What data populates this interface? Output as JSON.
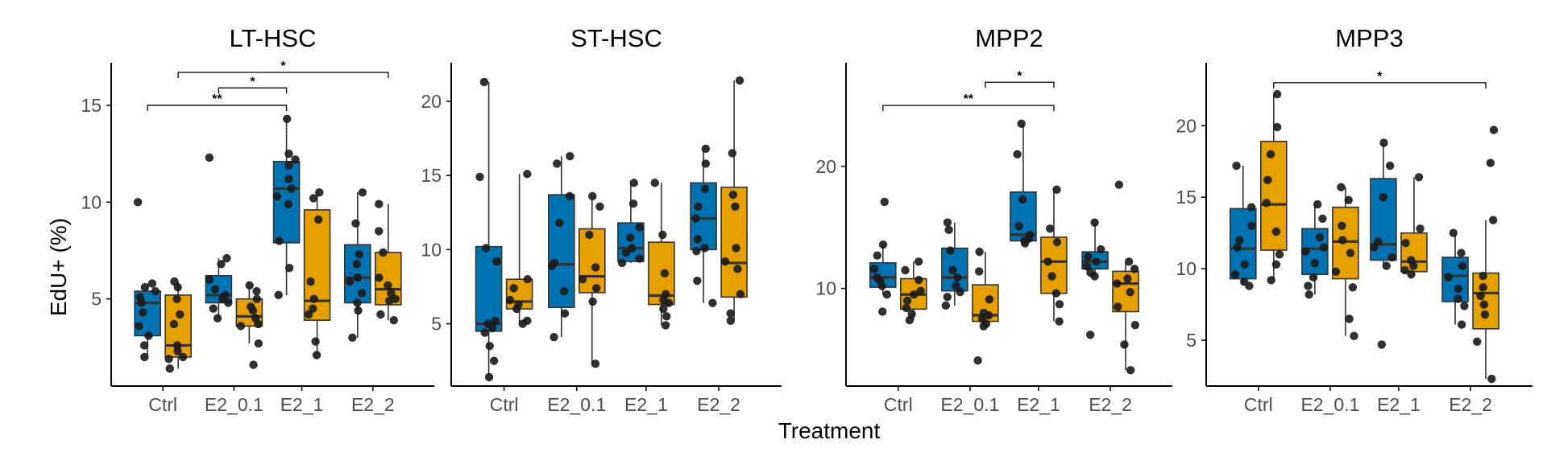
{
  "figure": {
    "ylabel": "EdU+ (%)",
    "xlabel": "Treatment"
  },
  "colors": {
    "series_a": "#0072B2",
    "series_b": "#E69F00",
    "box_edge": "#333333",
    "point": "#1a1a1a",
    "axis": "#000000"
  },
  "chart_data": [
    {
      "type": "box",
      "title": "LT-HSC",
      "categories": [
        "Ctrl",
        "E2_0.1",
        "E2_1",
        "E2_2"
      ],
      "ylim": [
        0.5,
        17.2
      ],
      "yticks": [
        5,
        10,
        15
      ],
      "series": [
        {
          "name": "group A",
          "boxes": [
            {
              "q1": 3.1,
              "median": 4.8,
              "q3": 5.4,
              "whislo": 2.0,
              "whishi": 5.8,
              "outliers": [
                10.0
              ],
              "points": [
                10.0,
                5.8,
                5.6,
                5.4,
                5.1,
                4.8,
                4.3,
                3.6,
                3.1,
                2.6,
                2.0
              ]
            },
            {
              "q1": 4.8,
              "median": 5.2,
              "q3": 6.2,
              "whislo": 4.0,
              "whishi": 7.1,
              "outliers": [
                12.3
              ],
              "points": [
                12.3,
                7.1,
                6.8,
                6.0,
                5.5,
                5.2,
                5.0,
                4.8,
                4.5,
                4.0
              ]
            },
            {
              "q1": 7.9,
              "median": 10.7,
              "q3": 12.1,
              "whislo": 5.2,
              "whishi": 14.3,
              "points": [
                14.3,
                12.5,
                12.2,
                11.9,
                11.2,
                10.7,
                10.3,
                9.9,
                8.0,
                6.6,
                5.2
              ]
            },
            {
              "q1": 4.8,
              "median": 6.1,
              "q3": 7.8,
              "whislo": 3.0,
              "whishi": 10.5,
              "points": [
                10.5,
                8.9,
                7.3,
                6.8,
                6.1,
                5.9,
                5.3,
                4.8,
                4.4,
                3.0
              ]
            }
          ]
        },
        {
          "name": "group B",
          "boxes": [
            {
              "q1": 2.0,
              "median": 2.6,
              "q3": 5.2,
              "whislo": 1.4,
              "whishi": 5.9,
              "points": [
                5.9,
                5.6,
                5.0,
                4.2,
                3.7,
                2.6,
                2.3,
                2.0,
                1.9,
                1.4
              ]
            },
            {
              "q1": 3.6,
              "median": 4.1,
              "q3": 5.0,
              "whislo": 2.7,
              "whishi": 5.7,
              "outliers": [
                1.6
              ],
              "points": [
                5.7,
                5.4,
                5.0,
                4.6,
                4.4,
                4.0,
                3.7,
                3.6,
                2.7,
                1.6
              ]
            },
            {
              "q1": 3.9,
              "median": 4.9,
              "q3": 9.6,
              "whislo": 2.1,
              "whishi": 10.5,
              "points": [
                10.5,
                10.2,
                9.1,
                5.9,
                5.0,
                4.5,
                4.2,
                2.8,
                2.1
              ]
            },
            {
              "q1": 4.7,
              "median": 5.5,
              "q3": 7.4,
              "whislo": 3.9,
              "whishi": 9.9,
              "points": [
                9.9,
                8.5,
                7.4,
                6.1,
                5.7,
                5.3,
                5.0,
                4.9,
                4.2,
                3.9
              ]
            }
          ]
        }
      ],
      "annotations": [
        {
          "label": "**",
          "from": [
            0,
            0
          ],
          "to": [
            2,
            0
          ],
          "y": 15.0
        },
        {
          "label": "*",
          "from": [
            1,
            0
          ],
          "to": [
            2,
            0
          ],
          "y": 15.9
        },
        {
          "label": "*",
          "from": [
            0,
            1
          ],
          "to": [
            3,
            1
          ],
          "y": 16.7
        }
      ]
    },
    {
      "type": "box",
      "title": "ST-HSC",
      "categories": [
        "Ctrl",
        "E2_0.1",
        "E2_1",
        "E2_2"
      ],
      "ylim": [
        0.8,
        22.6
      ],
      "yticks": [
        5,
        10,
        15,
        20
      ],
      "series": [
        {
          "name": "group A",
          "boxes": [
            {
              "q1": 4.5,
              "median": 5.0,
              "q3": 10.2,
              "whislo": 1.4,
              "whishi": 21.3,
              "points": [
                21.3,
                14.9,
                10.1,
                9.2,
                5.2,
                5.0,
                4.7,
                4.4,
                3.5,
                2.5,
                1.4
              ]
            },
            {
              "q1": 6.1,
              "median": 9.0,
              "q3": 13.7,
              "whislo": 4.1,
              "whishi": 16.3,
              "points": [
                16.3,
                15.8,
                13.6,
                11.8,
                9.1,
                8.9,
                7.2,
                5.7,
                4.1
              ]
            },
            {
              "q1": 9.2,
              "median": 10.1,
              "q3": 11.8,
              "whislo": 9.1,
              "whishi": 14.5,
              "points": [
                14.5,
                13.1,
                11.5,
                10.8,
                10.1,
                9.8,
                9.4,
                9.1
              ]
            },
            {
              "q1": 10.0,
              "median": 12.1,
              "q3": 14.5,
              "whislo": 6.4,
              "whishi": 16.8,
              "points": [
                16.8,
                15.8,
                14.1,
                12.9,
                12.1,
                10.7,
                10.1,
                9.9,
                7.9,
                6.4
              ]
            }
          ]
        },
        {
          "name": "group B",
          "boxes": [
            {
              "q1": 6.0,
              "median": 6.5,
              "q3": 8.0,
              "whislo": 5.0,
              "whishi": 15.1,
              "points": [
                15.1,
                8.0,
                7.4,
                6.6,
                6.3,
                6.0,
                5.2,
                5.0
              ]
            },
            {
              "q1": 7.1,
              "median": 8.2,
              "q3": 11.4,
              "whislo": 2.3,
              "whishi": 13.6,
              "points": [
                13.6,
                12.9,
                11.0,
                8.8,
                8.0,
                7.4,
                6.5,
                2.3
              ]
            },
            {
              "q1": 6.3,
              "median": 6.9,
              "q3": 10.5,
              "whislo": 4.9,
              "whishi": 14.5,
              "points": [
                14.5,
                11.0,
                8.4,
                7.0,
                6.6,
                6.4,
                6.0,
                5.5,
                4.9
              ]
            },
            {
              "q1": 6.8,
              "median": 9.1,
              "q3": 14.2,
              "whislo": 5.2,
              "whishi": 21.4,
              "points": [
                21.4,
                16.5,
                13.7,
                12.9,
                10.1,
                9.2,
                8.7,
                7.0,
                5.7,
                5.2
              ]
            }
          ]
        }
      ],
      "annotations": []
    },
    {
      "type": "box",
      "title": "MPP2",
      "categories": [
        "Ctrl",
        "E2_0.1",
        "E2_1",
        "E2_2"
      ],
      "ylim": [
        2.0,
        28.5
      ],
      "yticks": [
        10,
        20
      ],
      "series": [
        {
          "name": "group A",
          "boxes": [
            {
              "q1": 10.1,
              "median": 10.9,
              "q3": 12.1,
              "whislo": 9.5,
              "whishi": 13.6,
              "outliers": [
                17.1,
                8.1
              ],
              "points": [
                17.1,
                13.6,
                12.7,
                11.6,
                10.9,
                10.6,
                10.2,
                9.5,
                8.1
              ]
            },
            {
              "q1": 9.8,
              "median": 10.9,
              "q3": 13.3,
              "whislo": 8.6,
              "whishi": 15.4,
              "points": [
                15.4,
                14.8,
                13.1,
                11.5,
                10.9,
                10.2,
                9.7,
                9.3,
                8.6
              ]
            },
            {
              "q1": 13.9,
              "median": 14.4,
              "q3": 17.9,
              "whislo": 13.7,
              "whishi": 23.5,
              "points": [
                23.5,
                21.0,
                17.3,
                15.1,
                14.4,
                14.1,
                13.9,
                13.7
              ]
            },
            {
              "q1": 11.6,
              "median": 12.2,
              "q3": 13.0,
              "whislo": 11.0,
              "whishi": 15.4,
              "outliers": [
                6.2
              ],
              "points": [
                15.4,
                13.2,
                12.6,
                12.2,
                11.8,
                11.3,
                11.0,
                6.2
              ]
            }
          ]
        },
        {
          "name": "group B",
          "boxes": [
            {
              "q1": 8.3,
              "median": 9.5,
              "q3": 10.8,
              "whislo": 7.4,
              "whishi": 12.2,
              "points": [
                12.2,
                11.5,
                10.7,
                9.8,
                9.5,
                9.0,
                8.4,
                7.9,
                7.4
              ]
            },
            {
              "q1": 7.3,
              "median": 7.8,
              "q3": 10.3,
              "whislo": 6.9,
              "whishi": 13.0,
              "outliers": [
                4.1
              ],
              "points": [
                13.0,
                11.4,
                9.1,
                8.0,
                7.8,
                7.5,
                7.1,
                6.9,
                4.1
              ]
            },
            {
              "q1": 9.6,
              "median": 12.2,
              "q3": 14.2,
              "whislo": 7.3,
              "whishi": 18.1,
              "points": [
                18.1,
                14.9,
                13.8,
                12.2,
                11.0,
                9.6,
                8.7,
                7.3
              ]
            },
            {
              "q1": 8.1,
              "median": 10.4,
              "q3": 11.4,
              "whislo": 3.3,
              "whishi": 12.2,
              "outliers": [
                18.5
              ],
              "points": [
                18.5,
                12.2,
                11.6,
                10.8,
                10.4,
                9.7,
                8.5,
                7.0,
                5.4,
                3.3
              ]
            }
          ]
        }
      ],
      "annotations": [
        {
          "label": "**",
          "from": [
            0,
            0
          ],
          "to": [
            2,
            1
          ],
          "y": 25.0
        },
        {
          "label": "*",
          "from": [
            1,
            1
          ],
          "to": [
            2,
            1
          ],
          "y": 26.9
        }
      ]
    },
    {
      "type": "box",
      "title": "MPP3",
      "categories": [
        "Ctrl",
        "E2_0.1",
        "E2_1",
        "E2_2"
      ],
      "ylim": [
        1.8,
        24.4
      ],
      "yticks": [
        5,
        10,
        15,
        20
      ],
      "series": [
        {
          "name": "group A",
          "boxes": [
            {
              "q1": 9.3,
              "median": 11.4,
              "q3": 14.2,
              "whislo": 8.8,
              "whishi": 17.2,
              "points": [
                17.2,
                14.3,
                13.0,
                12.0,
                11.5,
                10.3,
                9.6,
                9.1,
                8.8
              ]
            },
            {
              "q1": 9.6,
              "median": 11.4,
              "q3": 12.8,
              "whislo": 8.2,
              "whishi": 14.5,
              "points": [
                14.5,
                13.5,
                12.2,
                11.5,
                11.2,
                10.4,
                9.4,
                8.8,
                8.2
              ]
            },
            {
              "q1": 10.6,
              "median": 11.7,
              "q3": 16.3,
              "whislo": 10.2,
              "whishi": 18.8,
              "outliers": [
                4.7
              ],
              "points": [
                18.8,
                17.2,
                15.0,
                11.9,
                11.5,
                10.8,
                10.2,
                4.7
              ]
            },
            {
              "q1": 7.7,
              "median": 9.5,
              "q3": 10.8,
              "whislo": 6.1,
              "whishi": 12.5,
              "points": [
                12.5,
                11.1,
                10.2,
                9.4,
                8.6,
                7.9,
                7.4,
                6.1
              ]
            }
          ]
        },
        {
          "name": "group B",
          "boxes": [
            {
              "q1": 11.3,
              "median": 14.5,
              "q3": 18.9,
              "whislo": 9.2,
              "whishi": 22.2,
              "points": [
                22.2,
                19.9,
                18.0,
                16.2,
                14.6,
                12.6,
                11.0,
                10.3,
                9.2
              ]
            },
            {
              "q1": 9.3,
              "median": 11.9,
              "q3": 14.3,
              "whislo": 5.3,
              "whishi": 15.7,
              "points": [
                15.7,
                14.8,
                13.0,
                12.0,
                11.1,
                9.8,
                8.7,
                6.5,
                5.3
              ]
            },
            {
              "q1": 9.8,
              "median": 10.5,
              "q3": 12.5,
              "whislo": 9.6,
              "whishi": 16.4,
              "points": [
                16.4,
                12.8,
                11.8,
                10.6,
                10.2,
                9.9,
                9.6
              ]
            },
            {
              "q1": 5.8,
              "median": 8.3,
              "q3": 9.7,
              "whislo": 2.3,
              "whishi": 13.4,
              "outliers": [
                17.4,
                19.7
              ],
              "points": [
                19.7,
                17.4,
                13.4,
                9.5,
                8.7,
                8.1,
                7.5,
                6.8,
                4.9,
                2.3
              ]
            }
          ]
        }
      ],
      "annotations": [
        {
          "label": "*",
          "from": [
            0,
            1
          ],
          "to": [
            3,
            1
          ],
          "y": 23.0
        }
      ]
    }
  ]
}
